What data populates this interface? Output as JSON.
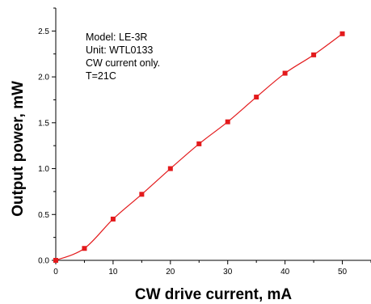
{
  "chart_data": {
    "type": "scatter",
    "xlabel": "CW drive current, mA",
    "ylabel": "Output power, mW",
    "xlim": [
      0,
      55
    ],
    "ylim": [
      0,
      2.75
    ],
    "x_ticks": [
      0,
      10,
      20,
      30,
      40,
      50
    ],
    "x_tick_labels": [
      "0",
      "10",
      "20",
      "30",
      "40",
      "50"
    ],
    "y_ticks": [
      0,
      0.5,
      1.0,
      1.5,
      2.0,
      2.5
    ],
    "y_tick_labels": [
      "0.0",
      "0.5",
      "1.0",
      "1.5",
      "2.0",
      "2.5"
    ],
    "annotations": [
      "Model: LE-3R",
      "Unit: WTL0133",
      "CW current only.",
      "T=21C"
    ],
    "grid": false,
    "series": [
      {
        "marker": "square",
        "color": "#e31a1c",
        "points": [
          {
            "x": 0,
            "y": 0.0
          },
          {
            "x": 5,
            "y": 0.13
          },
          {
            "x": 10,
            "y": 0.45
          },
          {
            "x": 15,
            "y": 0.72
          },
          {
            "x": 20,
            "y": 1.0
          },
          {
            "x": 25,
            "y": 1.27
          },
          {
            "x": 30,
            "y": 1.51
          },
          {
            "x": 35,
            "y": 1.78
          },
          {
            "x": 40,
            "y": 2.04
          },
          {
            "x": 45,
            "y": 2.24
          },
          {
            "x": 50,
            "y": 2.47
          }
        ]
      }
    ]
  }
}
